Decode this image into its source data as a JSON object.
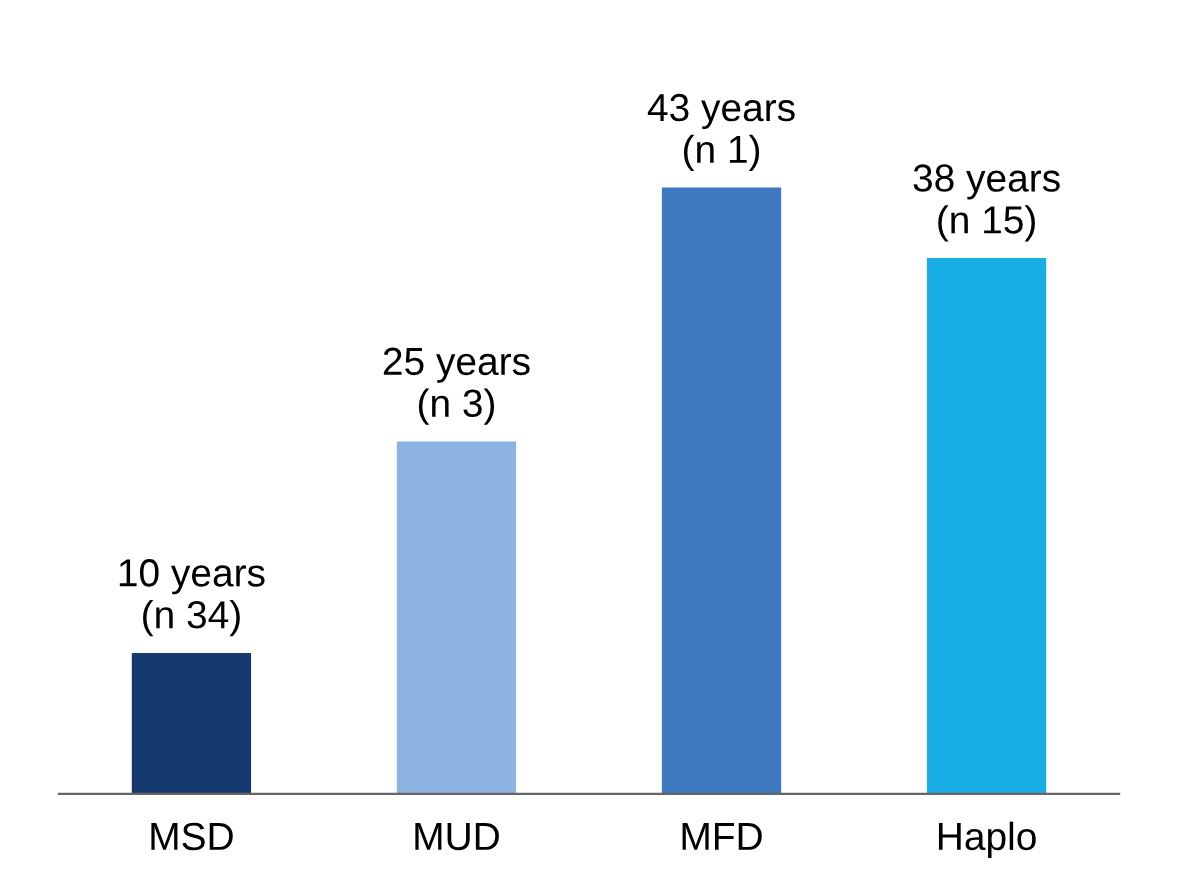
{
  "chart_data": {
    "type": "bar",
    "categories": [
      "MSD",
      "MUD",
      "MFD",
      "Haplo"
    ],
    "values": [
      10,
      25,
      43,
      38
    ],
    "colors": [
      "#173a6e",
      "#8db3e2",
      "#3d78c0",
      "#1aaee6"
    ],
    "value_labels": [
      "10 years\n(n 34)",
      "25 years\n(n 3)",
      "43 years\n(n 1)",
      "38 years\n(n 15)"
    ],
    "grid": false,
    "legend": false
  }
}
